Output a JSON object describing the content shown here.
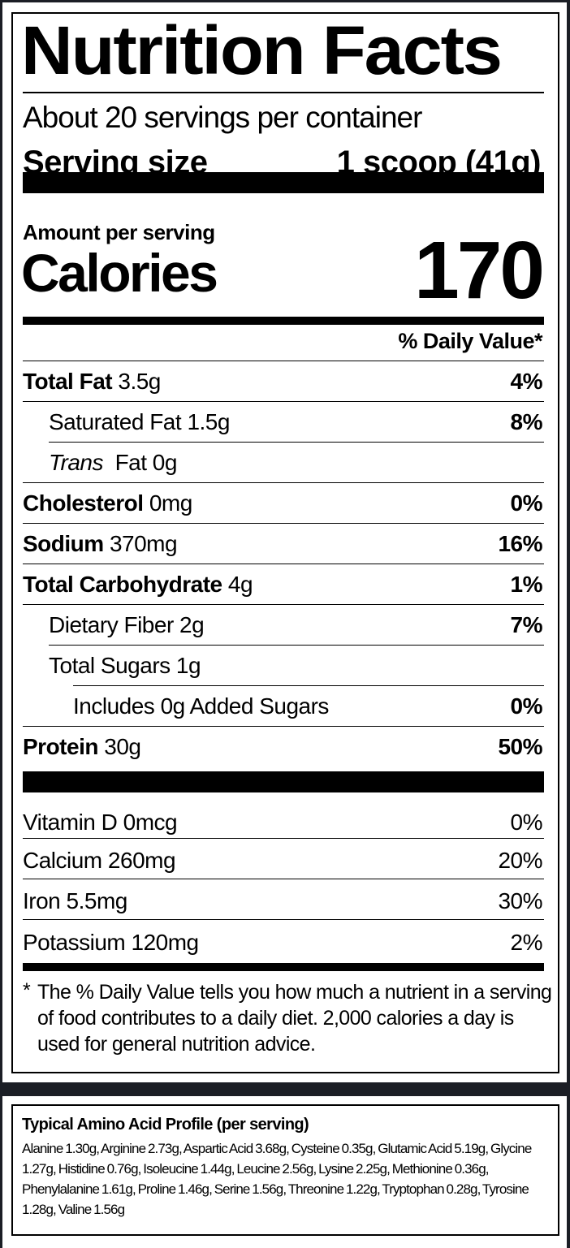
{
  "label": {
    "title": "Nutrition Facts",
    "servings_per_container": "About 20 servings per container",
    "serving_size_label": "Serving size",
    "serving_size_value": "1 scoop (41g)",
    "amount_per_serving": "Amount per serving",
    "calories_label": "Calories",
    "calories_value": "170",
    "daily_value_header": "% Daily Value*",
    "nutrients": [
      {
        "name": "Total Fat",
        "amount": "3.5g",
        "dv": "4%"
      },
      {
        "name": "Saturated Fat",
        "amount": "1.5g",
        "dv": "8%"
      },
      {
        "name": "Trans",
        "amount": "Fat 0g",
        "dv": ""
      },
      {
        "name": "Cholesterol",
        "amount": "0mg",
        "dv": "0%"
      },
      {
        "name": "Sodium",
        "amount": "370mg",
        "dv": "16%"
      },
      {
        "name": "Total Carbohydrate",
        "amount": "4g",
        "dv": "1%"
      },
      {
        "name": "Dietary Fiber",
        "amount": "2g",
        "dv": "7%"
      },
      {
        "name": "Total Sugars",
        "amount": "1g",
        "dv": ""
      },
      {
        "name": "Includes 0g Added Sugars",
        "amount": "",
        "dv": "0%"
      },
      {
        "name": "Protein",
        "amount": "30g",
        "dv": "50%"
      }
    ],
    "vitamins": [
      {
        "name": "Vitamin D",
        "amount": "0mcg",
        "dv": "0%"
      },
      {
        "name": "Calcium",
        "amount": "260mg",
        "dv": "20%"
      },
      {
        "name": "Iron",
        "amount": "5.5mg",
        "dv": "30%"
      },
      {
        "name": "Potassium",
        "amount": "120mg",
        "dv": "2%"
      }
    ],
    "footnote_marker": "*",
    "footnote": "The % Daily Value tells you how much a nutrient in a serving of food contributes to a daily diet. 2,000 calories a day is used for general nutrition advice."
  },
  "amino": {
    "title": "Typical Amino Acid Profile (per serving)",
    "text": "Alanine 1.30g, Arginine 2.73g, Aspartic Acid 3.68g, Cysteine 0.35g, Glutamic Acid 5.19g, Glycine 1.27g, Histidine 0.76g, Isoleucine 1.44g,  Leucine 2.56g, Lysine 2.25g, Methionine 0.36g, Phenylalanine 1.61g,  Proline 1.46g, Serine 1.56g, Threonine 1.22g, Tryptophan 0.28g, Tyrosine 1.28g, Valine 1.56g"
  }
}
